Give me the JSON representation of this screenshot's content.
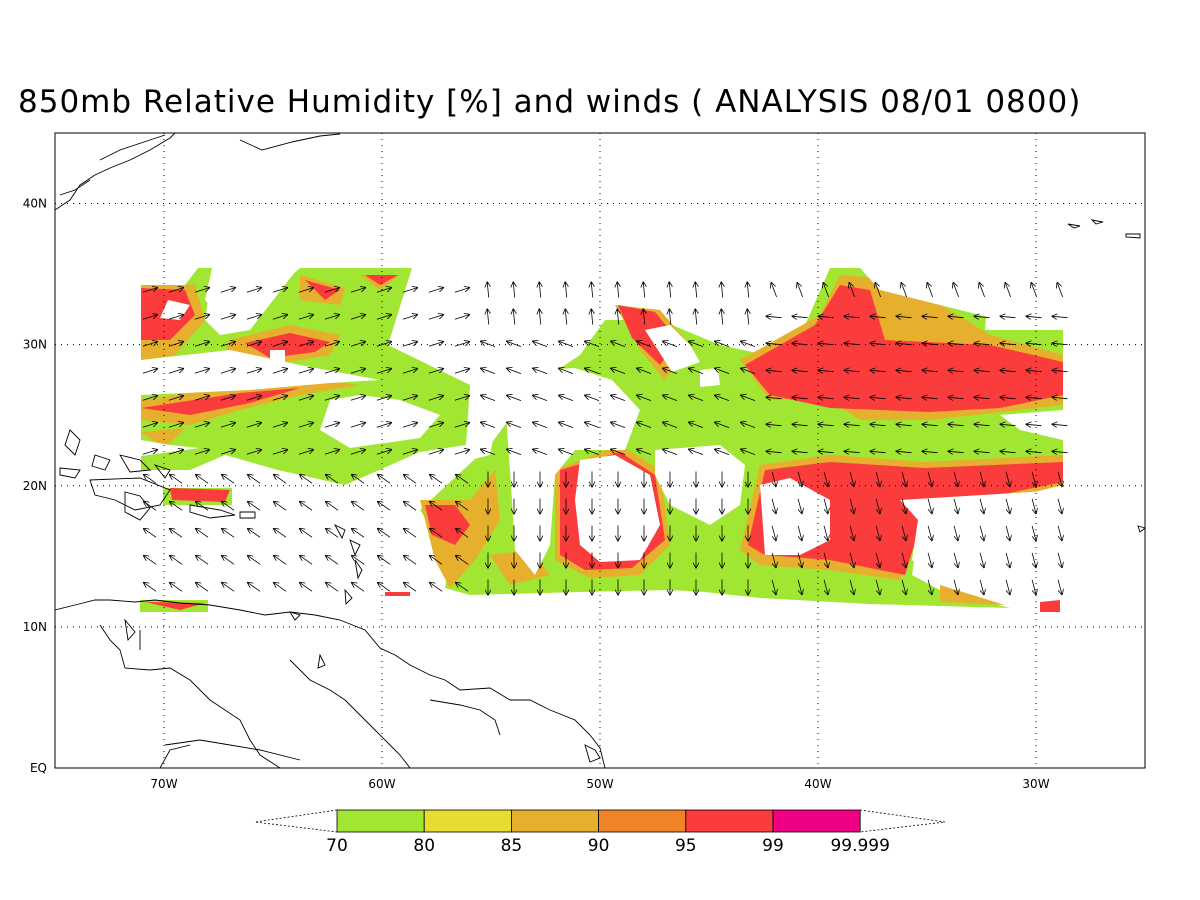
{
  "title": "850mb Relative Humidity [%] and winds ( ANALYSIS 08/01 0800)",
  "axes": {
    "lon_range": [
      -75,
      -25
    ],
    "lat_range": [
      0,
      45
    ],
    "lon_ticks": [
      {
        "value": -70,
        "label": "70W"
      },
      {
        "value": -60,
        "label": "60W"
      },
      {
        "value": -50,
        "label": "50W"
      },
      {
        "value": -40,
        "label": "40W"
      },
      {
        "value": -30,
        "label": "30W"
      }
    ],
    "lat_ticks": [
      {
        "value": 0,
        "label": "EQ"
      },
      {
        "value": 10,
        "label": "10N"
      },
      {
        "value": 20,
        "label": "20N"
      },
      {
        "value": 30,
        "label": "30N"
      },
      {
        "value": 40,
        "label": "40N"
      }
    ],
    "grid": "dotted"
  },
  "colorbar": {
    "labels": [
      "70",
      "80",
      "85",
      "90",
      "95",
      "99",
      "99.999"
    ],
    "colors": [
      "#a0e632",
      "#e6dc32",
      "#e6af2d",
      "#f08228",
      "#fa3c3c",
      "#f00082"
    ]
  }
}
